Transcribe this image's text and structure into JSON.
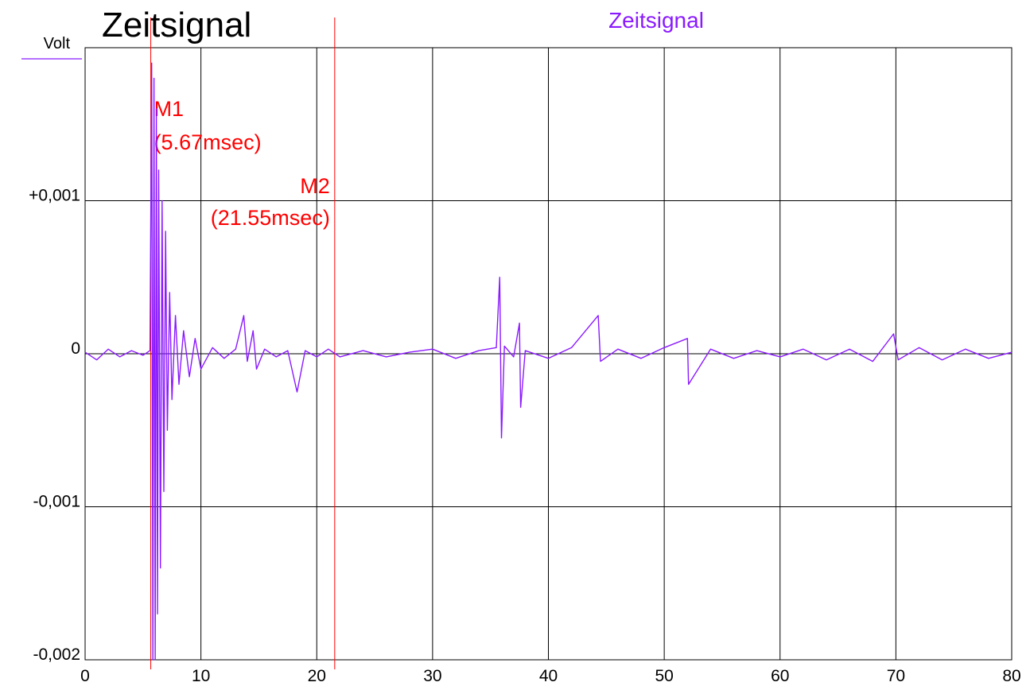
{
  "chart_data": {
    "type": "line",
    "title": "Zeitsignal",
    "series_title": "Zeitsignal",
    "ylabel": "Volt",
    "xlabel": "",
    "xlim": [
      0,
      80
    ],
    "ylim": [
      -0.002,
      0.002
    ],
    "x_ticks": [
      "0",
      "10",
      "20",
      "30",
      "40",
      "50",
      "60",
      "70",
      "80"
    ],
    "y_ticks": [
      {
        "value": 0.001,
        "label": "+0,001"
      },
      {
        "value": 0,
        "label": "0"
      },
      {
        "value": -0.001,
        "label": "-0,001"
      },
      {
        "value": -0.002,
        "label": "-0,002"
      }
    ],
    "grid": true,
    "colors": {
      "series": "#8B1AFF",
      "marker": "#FF0000",
      "grid": "#000000"
    },
    "markers": [
      {
        "name": "M1",
        "x": 5.67,
        "label": "(5.67msec)"
      },
      {
        "name": "M2",
        "x": 21.55,
        "label": "(21.55msec)"
      }
    ],
    "series": [
      {
        "name": "Zeitsignal",
        "points": [
          [
            0,
            1e-05
          ],
          [
            1,
            -4e-05
          ],
          [
            2,
            3e-05
          ],
          [
            3,
            -2e-05
          ],
          [
            4,
            2e-05
          ],
          [
            5,
            -1e-05
          ],
          [
            5.6,
            2e-05
          ],
          [
            5.75,
            0.0019
          ],
          [
            5.85,
            -0.002
          ],
          [
            5.95,
            0.0018
          ],
          [
            6.05,
            -0.002
          ],
          [
            6.15,
            0.0016
          ],
          [
            6.25,
            -0.0017
          ],
          [
            6.35,
            0.0012
          ],
          [
            6.5,
            -0.0014
          ],
          [
            6.65,
            0.001
          ],
          [
            6.8,
            -0.0009
          ],
          [
            6.95,
            0.0008
          ],
          [
            7.1,
            -0.0005
          ],
          [
            7.3,
            0.0004
          ],
          [
            7.5,
            -0.0003
          ],
          [
            7.8,
            0.00025
          ],
          [
            8.1,
            -0.0002
          ],
          [
            8.5,
            0.00015
          ],
          [
            9,
            -0.00015
          ],
          [
            9.5,
            0.0001
          ],
          [
            10,
            -0.0001
          ],
          [
            11,
            4e-05
          ],
          [
            12,
            -3e-05
          ],
          [
            13,
            3e-05
          ],
          [
            13.7,
            0.00025
          ],
          [
            14,
            -5e-05
          ],
          [
            14.5,
            0.00015
          ],
          [
            14.8,
            -0.0001
          ],
          [
            15.5,
            3e-05
          ],
          [
            16.5,
            -2e-05
          ],
          [
            17.5,
            2e-05
          ],
          [
            18.3,
            -0.00025
          ],
          [
            19,
            2e-05
          ],
          [
            20,
            -2e-05
          ],
          [
            21,
            3e-05
          ],
          [
            22,
            -2e-05
          ],
          [
            24,
            2e-05
          ],
          [
            26,
            -2e-05
          ],
          [
            28,
            1e-05
          ],
          [
            30,
            3e-05
          ],
          [
            32,
            -3e-05
          ],
          [
            34,
            2e-05
          ],
          [
            35.5,
            4e-05
          ],
          [
            35.8,
            0.0005
          ],
          [
            35.95,
            -0.00055
          ],
          [
            36.2,
            5e-05
          ],
          [
            37,
            -2e-05
          ],
          [
            37.5,
            0.0002
          ],
          [
            37.6,
            -0.00035
          ],
          [
            38,
            2e-05
          ],
          [
            40,
            -3e-05
          ],
          [
            42,
            4e-05
          ],
          [
            44.3,
            0.00025
          ],
          [
            44.5,
            -5e-05
          ],
          [
            46,
            3e-05
          ],
          [
            48,
            -3e-05
          ],
          [
            50,
            4e-05
          ],
          [
            52,
            0.0001
          ],
          [
            52.1,
            -0.0002
          ],
          [
            54,
            3e-05
          ],
          [
            56,
            -3e-05
          ],
          [
            58,
            2e-05
          ],
          [
            60,
            -2e-05
          ],
          [
            62,
            3e-05
          ],
          [
            64,
            -4e-05
          ],
          [
            66,
            3e-05
          ],
          [
            68,
            -5e-05
          ],
          [
            69.8,
            0.00013
          ],
          [
            70.2,
            -4e-05
          ],
          [
            72,
            4e-05
          ],
          [
            74,
            -4e-05
          ],
          [
            76,
            3e-05
          ],
          [
            78,
            -3e-05
          ],
          [
            80,
            1e-05
          ]
        ]
      }
    ]
  }
}
